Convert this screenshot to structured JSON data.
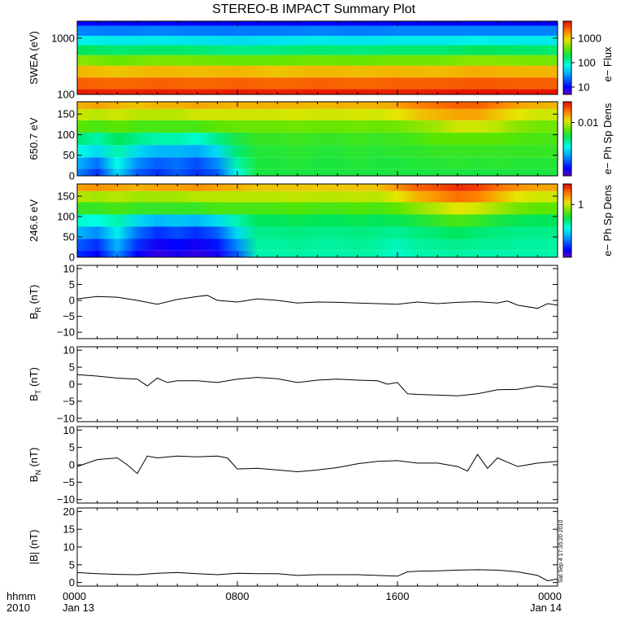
{
  "title": "STEREO-B IMPACT Summary Plot",
  "x_axis": {
    "prefix_top": "hhmm",
    "prefix_bottom": "2010",
    "ticks": [
      {
        "hour": 0,
        "time": "0000",
        "date": "Jan 13"
      },
      {
        "hour": 8,
        "time": "0800",
        "date": ""
      },
      {
        "hour": 16,
        "time": "1600",
        "date": ""
      },
      {
        "hour": 24,
        "time": "0000",
        "date": "Jan 14"
      }
    ],
    "range_hours": [
      0,
      24
    ]
  },
  "timestamp": "Sat Sep  4 17:35:20 2010",
  "colors": {
    "line": "#000000",
    "axis": "#000000",
    "background": "#ffffff"
  },
  "chart_data": [
    {
      "type": "heatmap",
      "ylabel": "SWEA (eV)",
      "yscale": "log",
      "ylim": [
        100,
        2000
      ],
      "yticks": [
        100,
        1000
      ],
      "ytick_labels": [
        "100",
        "1000"
      ],
      "colorbar": {
        "label": "e− Flux",
        "scale": "log",
        "range": [
          5,
          5000
        ],
        "ticks": [
          10,
          100,
          1000
        ],
        "tick_labels": [
          "10",
          "100",
          "1000"
        ]
      },
      "x_hours": [
        0,
        2,
        4,
        6,
        8,
        10,
        12,
        14,
        16,
        18,
        20,
        22,
        24
      ],
      "y_levels": [
        100,
        150,
        250,
        400,
        600,
        900,
        1300,
        2000
      ],
      "values_scaled": [
        [
          0.98,
          0.97,
          0.98,
          0.97,
          0.98,
          0.97,
          0.98,
          0.98,
          0.97,
          0.98,
          0.99,
          0.99,
          0.99
        ],
        [
          0.9,
          0.89,
          0.9,
          0.89,
          0.9,
          0.89,
          0.9,
          0.89,
          0.9,
          0.9,
          0.91,
          0.9,
          0.9
        ],
        [
          0.8,
          0.78,
          0.8,
          0.79,
          0.8,
          0.78,
          0.8,
          0.79,
          0.8,
          0.79,
          0.81,
          0.8,
          0.8
        ],
        [
          0.66,
          0.63,
          0.65,
          0.64,
          0.63,
          0.63,
          0.64,
          0.63,
          0.64,
          0.64,
          0.66,
          0.65,
          0.64
        ],
        [
          0.52,
          0.5,
          0.51,
          0.5,
          0.48,
          0.49,
          0.5,
          0.49,
          0.5,
          0.5,
          0.52,
          0.51,
          0.5
        ],
        [
          0.38,
          0.37,
          0.37,
          0.36,
          0.35,
          0.36,
          0.37,
          0.36,
          0.37,
          0.37,
          0.38,
          0.37,
          0.37
        ],
        [
          0.24,
          0.23,
          0.24,
          0.23,
          0.23,
          0.23,
          0.24,
          0.23,
          0.24,
          0.24,
          0.24,
          0.24,
          0.24
        ],
        [
          0.1,
          0.1,
          0.1,
          0.1,
          0.1,
          0.1,
          0.1,
          0.1,
          0.1,
          0.1,
          0.1,
          0.1,
          0.1
        ]
      ]
    },
    {
      "type": "heatmap",
      "ylabel": "650.7 eV",
      "yscale": "linear",
      "ylim": [
        0,
        180
      ],
      "yticks": [
        0,
        50,
        100,
        150
      ],
      "ytick_labels": [
        "0",
        "50",
        "100",
        "150"
      ],
      "colorbar": {
        "label": "e− Ph Sp Dens",
        "scale": "log",
        "ticks": [
          0.01
        ],
        "tick_labels": [
          "0.01"
        ]
      },
      "x_hours": [
        0,
        1,
        2,
        3,
        4,
        5,
        6,
        7,
        8,
        9,
        10,
        11,
        12,
        13,
        14,
        15,
        16,
        17,
        18,
        19,
        20,
        21,
        22,
        23,
        24
      ],
      "y_levels": [
        5,
        30,
        60,
        90,
        120,
        150,
        175
      ],
      "values_scaled": [
        [
          0.25,
          0.15,
          0.35,
          0.2,
          0.15,
          0.2,
          0.15,
          0.2,
          0.4,
          0.55,
          0.55,
          0.55,
          0.55,
          0.55,
          0.55,
          0.55,
          0.55,
          0.55,
          0.55,
          0.55,
          0.55,
          0.55,
          0.55,
          0.55,
          0.55
        ],
        [
          0.3,
          0.22,
          0.4,
          0.25,
          0.2,
          0.22,
          0.18,
          0.25,
          0.45,
          0.55,
          0.55,
          0.56,
          0.55,
          0.55,
          0.56,
          0.55,
          0.55,
          0.56,
          0.56,
          0.57,
          0.56,
          0.57,
          0.56,
          0.56,
          0.56
        ],
        [
          0.4,
          0.35,
          0.45,
          0.35,
          0.3,
          0.3,
          0.28,
          0.35,
          0.5,
          0.56,
          0.56,
          0.57,
          0.56,
          0.56,
          0.57,
          0.56,
          0.57,
          0.57,
          0.58,
          0.58,
          0.58,
          0.58,
          0.58,
          0.58,
          0.58
        ],
        [
          0.5,
          0.45,
          0.52,
          0.48,
          0.45,
          0.45,
          0.42,
          0.48,
          0.55,
          0.58,
          0.58,
          0.59,
          0.58,
          0.58,
          0.59,
          0.58,
          0.59,
          0.6,
          0.62,
          0.62,
          0.62,
          0.62,
          0.61,
          0.6,
          0.6
        ],
        [
          0.62,
          0.6,
          0.62,
          0.6,
          0.6,
          0.6,
          0.6,
          0.62,
          0.63,
          0.63,
          0.63,
          0.64,
          0.63,
          0.63,
          0.64,
          0.63,
          0.64,
          0.66,
          0.68,
          0.72,
          0.72,
          0.7,
          0.66,
          0.64,
          0.64
        ],
        [
          0.72,
          0.7,
          0.72,
          0.7,
          0.7,
          0.7,
          0.72,
          0.72,
          0.72,
          0.72,
          0.72,
          0.73,
          0.72,
          0.72,
          0.73,
          0.72,
          0.74,
          0.78,
          0.8,
          0.82,
          0.82,
          0.78,
          0.74,
          0.72,
          0.72
        ],
        [
          0.8,
          0.82,
          0.8,
          0.78,
          0.8,
          0.8,
          0.82,
          0.8,
          0.8,
          0.8,
          0.8,
          0.8,
          0.79,
          0.8,
          0.8,
          0.8,
          0.82,
          0.86,
          0.88,
          0.9,
          0.9,
          0.86,
          0.82,
          0.8,
          0.8
        ]
      ]
    },
    {
      "type": "heatmap",
      "ylabel": "246.6 eV",
      "yscale": "linear",
      "ylim": [
        0,
        180
      ],
      "yticks": [
        0,
        50,
        100,
        150
      ],
      "ytick_labels": [
        "0",
        "50",
        "100",
        "150"
      ],
      "colorbar": {
        "label": "e− Ph Sp Dens",
        "scale": "log",
        "ticks": [
          1
        ],
        "tick_labels": [
          "1"
        ]
      },
      "x_hours": [
        0,
        1,
        2,
        3,
        4,
        5,
        6,
        7,
        8,
        9,
        10,
        11,
        12,
        13,
        14,
        15,
        16,
        17,
        18,
        19,
        20,
        21,
        22,
        23,
        24
      ],
      "y_levels": [
        5,
        30,
        60,
        90,
        120,
        150,
        175
      ],
      "values_scaled": [
        [
          0.15,
          0.1,
          0.25,
          0.1,
          0.05,
          0.08,
          0.05,
          0.08,
          0.2,
          0.45,
          0.45,
          0.46,
          0.45,
          0.45,
          0.46,
          0.45,
          0.42,
          0.45,
          0.45,
          0.46,
          0.45,
          0.45,
          0.45,
          0.45,
          0.45
        ],
        [
          0.2,
          0.15,
          0.3,
          0.15,
          0.08,
          0.1,
          0.08,
          0.12,
          0.25,
          0.46,
          0.46,
          0.47,
          0.46,
          0.46,
          0.47,
          0.46,
          0.44,
          0.46,
          0.47,
          0.48,
          0.47,
          0.47,
          0.46,
          0.46,
          0.46
        ],
        [
          0.3,
          0.25,
          0.38,
          0.22,
          0.15,
          0.18,
          0.15,
          0.2,
          0.35,
          0.48,
          0.48,
          0.49,
          0.48,
          0.48,
          0.49,
          0.48,
          0.47,
          0.49,
          0.5,
          0.52,
          0.5,
          0.49,
          0.48,
          0.48,
          0.48
        ],
        [
          0.42,
          0.4,
          0.45,
          0.35,
          0.3,
          0.32,
          0.3,
          0.35,
          0.45,
          0.52,
          0.52,
          0.53,
          0.52,
          0.52,
          0.53,
          0.52,
          0.53,
          0.55,
          0.58,
          0.6,
          0.58,
          0.55,
          0.53,
          0.52,
          0.52
        ],
        [
          0.58,
          0.58,
          0.6,
          0.58,
          0.58,
          0.58,
          0.58,
          0.6,
          0.6,
          0.6,
          0.6,
          0.61,
          0.6,
          0.6,
          0.61,
          0.6,
          0.62,
          0.66,
          0.7,
          0.74,
          0.72,
          0.68,
          0.64,
          0.62,
          0.62
        ],
        [
          0.7,
          0.68,
          0.7,
          0.68,
          0.68,
          0.68,
          0.7,
          0.7,
          0.7,
          0.7,
          0.7,
          0.71,
          0.7,
          0.7,
          0.71,
          0.7,
          0.74,
          0.8,
          0.84,
          0.88,
          0.86,
          0.8,
          0.74,
          0.72,
          0.72
        ],
        [
          0.82,
          0.84,
          0.82,
          0.8,
          0.82,
          0.82,
          0.84,
          0.82,
          0.8,
          0.78,
          0.78,
          0.78,
          0.77,
          0.78,
          0.78,
          0.78,
          0.84,
          0.9,
          0.92,
          0.96,
          0.94,
          0.88,
          0.84,
          0.82,
          0.82
        ]
      ]
    },
    {
      "type": "line",
      "ylabel": "B_R (nT)",
      "ylabel_main": "B",
      "ylabel_sub": "R",
      "ylabel_unit": " (nT)",
      "ylim": [
        -12,
        11
      ],
      "yticks": [
        -10,
        -5,
        0,
        5,
        10
      ],
      "ytick_labels": [
        "−10",
        "−5",
        "0",
        "5",
        "10"
      ],
      "x": [
        0,
        1,
        2,
        3,
        4,
        5,
        6,
        6.5,
        7,
        8,
        9,
        10,
        11,
        12,
        13,
        14,
        15,
        16,
        17,
        18,
        19,
        20,
        21,
        21.5,
        22,
        23,
        23.5,
        24
      ],
      "y": [
        0.5,
        1.2,
        1.0,
        0.0,
        -1.2,
        0.3,
        1.2,
        1.6,
        0.0,
        -0.5,
        0.5,
        0.0,
        -0.8,
        -0.5,
        -0.6,
        -0.8,
        -1.0,
        -1.2,
        -0.5,
        -1.0,
        -0.6,
        -0.4,
        -0.8,
        -0.2,
        -1.5,
        -2.5,
        -1.0,
        -1.5
      ]
    },
    {
      "type": "line",
      "ylabel": "B_T (nT)",
      "ylabel_main": "B",
      "ylabel_sub": "T",
      "ylabel_unit": " (nT)",
      "ylim": [
        -11,
        11
      ],
      "yticks": [
        -10,
        -5,
        0,
        5,
        10
      ],
      "ytick_labels": [
        "−10",
        "−5",
        "0",
        "5",
        "10"
      ],
      "x": [
        0,
        1,
        2,
        3,
        3.5,
        4,
        4.5,
        5,
        6,
        7,
        8,
        9,
        10,
        11,
        12,
        13,
        14,
        15,
        15.5,
        16,
        16.5,
        17,
        18,
        19,
        20,
        21,
        22,
        23,
        24
      ],
      "y": [
        2.8,
        2.4,
        1.8,
        1.5,
        -0.5,
        1.8,
        0.5,
        1.0,
        1.0,
        0.5,
        1.5,
        2.0,
        1.6,
        0.5,
        1.2,
        1.5,
        1.2,
        1.0,
        0.0,
        0.5,
        -2.8,
        -3.0,
        -3.2,
        -3.4,
        -2.8,
        -1.6,
        -1.5,
        -0.5,
        -1.0
      ]
    },
    {
      "type": "line",
      "ylabel": "B_N (nT)",
      "ylabel_main": "B",
      "ylabel_sub": "N",
      "ylabel_unit": " (nT)",
      "ylim": [
        -11,
        11
      ],
      "yticks": [
        -10,
        -5,
        0,
        5,
        10
      ],
      "ytick_labels": [
        "−10",
        "−5",
        "0",
        "5",
        "10"
      ],
      "x": [
        0,
        1,
        2,
        2.5,
        3,
        3.5,
        4,
        5,
        6,
        7,
        7.5,
        8,
        9,
        10,
        11,
        12,
        13,
        14,
        15,
        16,
        17,
        18,
        19,
        19.5,
        20,
        20.5,
        21,
        22,
        23,
        24
      ],
      "y": [
        -0.5,
        1.5,
        2.0,
        0.0,
        -2.5,
        2.5,
        2.0,
        2.5,
        2.3,
        2.5,
        2.0,
        -1.2,
        -1.0,
        -1.5,
        -2.0,
        -1.5,
        -0.8,
        0.3,
        1.0,
        1.2,
        0.5,
        0.5,
        -0.5,
        -1.8,
        3.0,
        -1.0,
        2.0,
        -0.5,
        0.5,
        1.0
      ]
    },
    {
      "type": "line",
      "ylabel": "|B| (nT)",
      "ylabel_main": "|B| (nT)",
      "ylabel_sub": "",
      "ylabel_unit": "",
      "ylim": [
        -1,
        21
      ],
      "yticks": [
        0,
        5,
        10,
        15,
        20
      ],
      "ytick_labels": [
        "0",
        "5",
        "10",
        "15",
        "20"
      ],
      "x": [
        0,
        1,
        2,
        3,
        4,
        5,
        6,
        7,
        8,
        9,
        10,
        11,
        12,
        13,
        14,
        15,
        16,
        16.5,
        17,
        18,
        19,
        20,
        21,
        22,
        23,
        23.5,
        24
      ],
      "y": [
        2.8,
        2.5,
        2.3,
        2.2,
        2.6,
        2.8,
        2.5,
        2.2,
        2.6,
        2.5,
        2.5,
        2.0,
        2.2,
        2.2,
        2.2,
        2.0,
        1.8,
        3.0,
        3.2,
        3.3,
        3.5,
        3.6,
        3.5,
        3.0,
        2.0,
        0.5,
        1.0
      ]
    }
  ]
}
